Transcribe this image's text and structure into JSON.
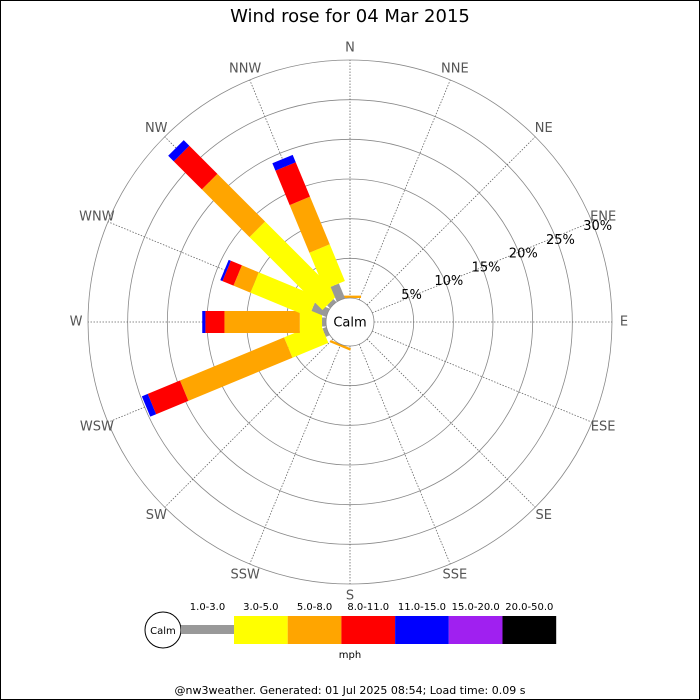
{
  "chart_data": {
    "type": "windrose",
    "title": "Wind rose for 04 Mar 2015",
    "categories": [
      "N",
      "NNE",
      "NE",
      "ENE",
      "E",
      "ESE",
      "SE",
      "SSE",
      "S",
      "SSW",
      "SW",
      "WSW",
      "W",
      "WNW",
      "NW",
      "NNW"
    ],
    "calm_label": "Calm",
    "unit_label": "mph",
    "ylim": [
      0,
      30
    ],
    "yticks": [
      {
        "value": 5,
        "label": "5%"
      },
      {
        "value": 10,
        "label": "10%"
      },
      {
        "value": 15,
        "label": "15%"
      },
      {
        "value": 20,
        "label": "20%"
      },
      {
        "value": 25,
        "label": "25%"
      },
      {
        "value": 30,
        "label": "30%"
      }
    ],
    "series": [
      {
        "name": "1.0-3.0",
        "color": "#999999",
        "values": [
          0,
          0,
          0,
          0,
          0,
          0,
          0,
          0,
          0,
          0,
          0,
          0.5,
          0.5,
          2,
          0.5,
          2
        ]
      },
      {
        "name": "3.0-5.0",
        "color": "#ffff00",
        "values": [
          0,
          0,
          0,
          0,
          0,
          0,
          0,
          0,
          0,
          0,
          0,
          4.9,
          2.8,
          8,
          13,
          5
        ]
      },
      {
        "name": "5.0-8.0",
        "color": "#ffa500",
        "values": [
          0.3,
          0,
          0,
          0,
          0,
          0,
          0,
          0,
          0,
          0.3,
          0,
          14.2,
          9.5,
          2.3,
          8.5,
          6.5
        ]
      },
      {
        "name": "8.0-11.0",
        "color": "#ff0000",
        "values": [
          0,
          0,
          0,
          0,
          0,
          0,
          0,
          0,
          0,
          0,
          0,
          4.4,
          2.4,
          1.5,
          5,
          4.7
        ]
      },
      {
        "name": "11.0-15.0",
        "color": "#0000ff",
        "values": [
          0,
          0,
          0,
          0,
          0,
          0,
          0,
          0,
          0,
          0,
          0,
          0.8,
          0.4,
          0.3,
          1,
          1
        ]
      },
      {
        "name": "15.0-20.0",
        "color": "#a020f0",
        "values": [
          0,
          0,
          0,
          0,
          0,
          0,
          0,
          0,
          0,
          0,
          0,
          0,
          0,
          0,
          0,
          0
        ]
      },
      {
        "name": "20.0-50.0",
        "color": "#000000",
        "values": [
          0,
          0,
          0,
          0,
          0,
          0,
          0,
          0,
          0,
          0,
          0,
          0,
          0,
          0,
          0,
          0
        ]
      }
    ],
    "footer": "@nw3weather. Generated: 01 Jul 2025 08:54; Load time: 0.09 s"
  }
}
